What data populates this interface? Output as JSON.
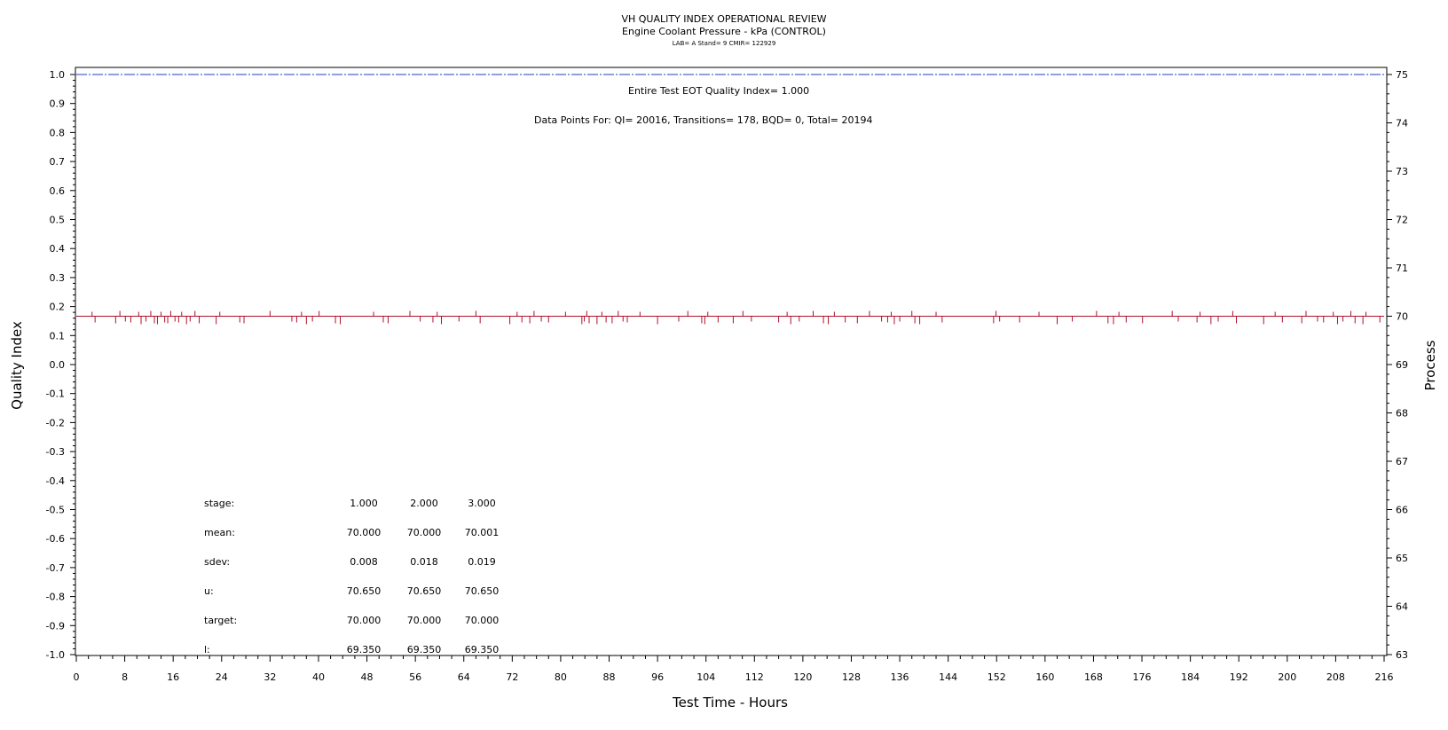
{
  "chart_data": {
    "type": "line",
    "title": "VH QUALITY INDEX OPERATIONAL REVIEW",
    "subtitle": "Engine Coolant Pressure - kPa (CONTROL)",
    "subsubtitle": "LAB= A Stand= 9 CMIR= 122929",
    "xlabel": "Test Time - Hours",
    "ylabel_left": "Quality Index",
    "ylabel_right": "Process",
    "xlim": [
      0,
      216
    ],
    "ylim_left": [
      -1.0,
      1.0
    ],
    "ylim_right": [
      63,
      75
    ],
    "x_ticks": [
      "0",
      "8",
      "16",
      "24",
      "32",
      "40",
      "48",
      "56",
      "64",
      "72",
      "80",
      "88",
      "96",
      "104",
      "112",
      "120",
      "128",
      "136",
      "144",
      "152",
      "160",
      "168",
      "176",
      "184",
      "192",
      "200",
      "208",
      "216"
    ],
    "y_left_ticks": [
      "1.0",
      "0.9",
      "0.8",
      "0.7",
      "0.6",
      "0.5",
      "0.4",
      "0.3",
      "0.2",
      "0.1",
      "0.0",
      "-0.1",
      "-0.2",
      "-0.3",
      "-0.4",
      "-0.5",
      "-0.6",
      "-0.7",
      "-0.8",
      "-0.9",
      "-1.0"
    ],
    "y_right_ticks": [
      "75",
      "74",
      "73",
      "72",
      "71",
      "70",
      "69",
      "68",
      "67",
      "66",
      "65",
      "64",
      "63"
    ],
    "annotations": {
      "quality_index": "Entire Test EOT Quality Index=   1.000",
      "data_points": "Data Points For: QI= 20016, Transitions=   178, BQD=    0, Total= 20194"
    },
    "series": [
      {
        "axis": "left",
        "color": "#1f3fbf",
        "style": "dashed",
        "x": [
          0,
          216
        ],
        "y": [
          1.0,
          1.0
        ]
      },
      {
        "axis": "right",
        "color": "#b0102a",
        "style": "solid",
        "x": [
          0,
          216
        ],
        "y": [
          70.0,
          70.0
        ],
        "spike_hours": [
          2.6,
          3.1,
          6.5,
          7.2,
          8.1,
          9.0,
          10.3,
          10.7,
          11.5,
          12.3,
          12.9,
          13.4,
          14.0,
          14.6,
          15.1,
          15.6,
          16.3,
          16.9,
          17.4,
          18.2,
          18.8,
          19.6,
          20.3,
          23.1,
          23.7,
          27.0,
          27.7,
          32.0,
          35.6,
          36.4,
          37.2,
          38.0,
          39.0,
          40.1,
          42.8,
          43.6,
          49.1,
          50.7,
          51.5,
          55.1,
          56.8,
          58.9,
          59.6,
          60.3,
          63.2,
          66.0,
          66.7,
          71.6,
          72.8,
          73.6,
          74.9,
          75.6,
          76.8,
          78.0,
          80.8,
          83.5,
          83.9,
          84.3,
          84.7,
          86.0,
          86.8,
          87.5,
          88.5,
          89.5,
          90.3,
          91.0,
          93.1,
          96.0,
          99.5,
          101.0,
          103.3,
          103.8,
          104.3,
          106.0,
          108.5,
          110.1,
          111.5,
          116.0,
          117.4,
          118.0,
          119.4,
          121.7,
          123.4,
          124.2,
          125.2,
          127.0,
          129.0,
          131.0,
          133.0,
          134.0,
          134.6,
          135.1,
          136.0,
          138.0,
          138.5,
          139.3,
          142.0,
          143.0,
          151.5,
          151.9,
          152.5,
          155.8,
          159.0,
          162.0,
          164.5,
          168.5,
          170.4,
          171.3,
          172.2,
          173.4,
          176.1,
          181.0,
          182.0,
          185.1,
          185.6,
          187.4,
          188.6,
          191.0,
          191.6,
          196.1,
          198.0,
          199.2,
          202.4,
          203.1,
          205.0,
          206.0,
          207.6,
          208.3,
          209.2,
          210.5,
          211.2,
          212.5,
          213.0,
          215.3
        ]
      }
    ],
    "stats_table": {
      "rows": [
        {
          "label": "stage:",
          "values": [
            "1.000",
            "2.000",
            "3.000"
          ]
        },
        {
          "label": "mean:",
          "values": [
            "70.000",
            "70.000",
            "70.001"
          ]
        },
        {
          "label": "sdev:",
          "values": [
            "0.008",
            "0.018",
            "0.019"
          ]
        },
        {
          "label": "u:",
          "values": [
            "70.650",
            "70.650",
            "70.650"
          ]
        },
        {
          "label": "target:",
          "values": [
            "70.000",
            "70.000",
            "70.000"
          ]
        },
        {
          "label": "l:",
          "values": [
            "69.350",
            "69.350",
            "69.350"
          ]
        }
      ]
    },
    "grid": false
  }
}
